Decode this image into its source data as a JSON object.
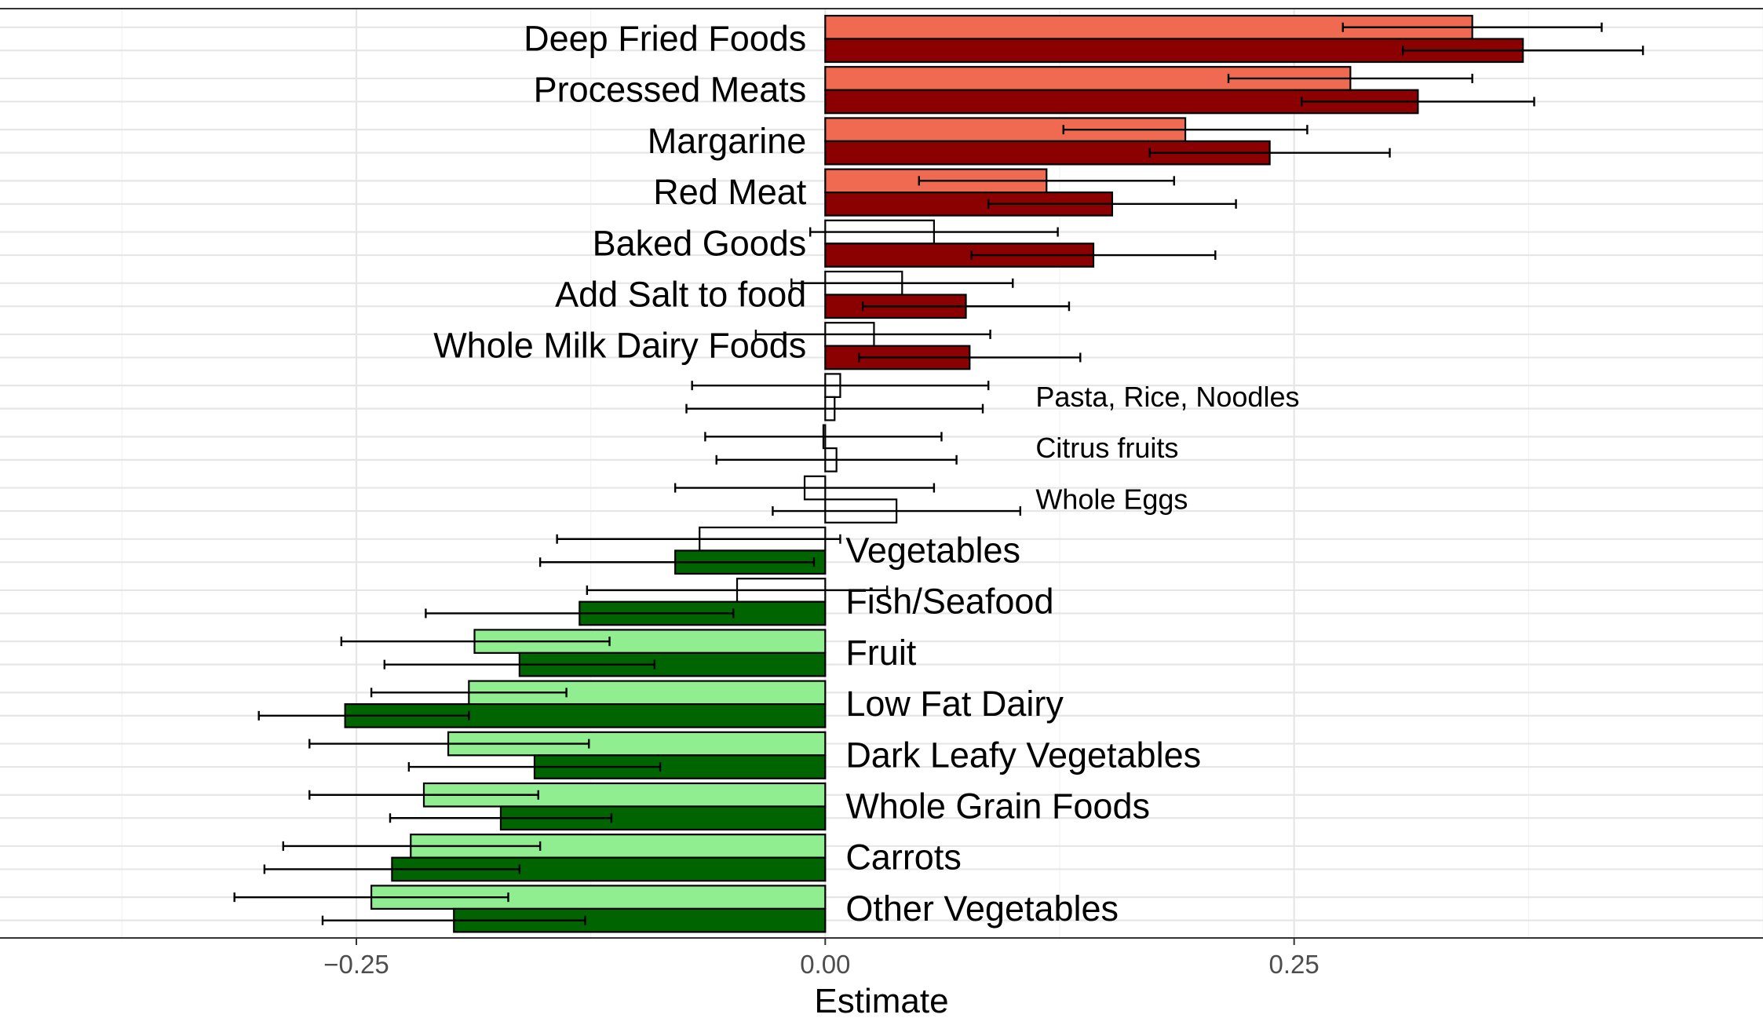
{
  "chart_data": {
    "type": "bar",
    "orientation": "horizontal",
    "xlabel": "Estimate",
    "ylabel": "",
    "xlim": [
      -0.44,
      0.5
    ],
    "xticks": [
      -0.25,
      0.0,
      0.25
    ],
    "xtick_labels": [
      "−0.25",
      "0.00",
      "0.25"
    ],
    "grid": true,
    "colors": {
      "positive_light": "#ef6a50",
      "positive_dark": "#8b0000",
      "negative_light": "#90ee90",
      "negative_dark": "#006400",
      "nonsignificant": "#ffffff"
    },
    "categories": [
      "Deep Fried Foods",
      "Processed Meats",
      "Margarine",
      "Red Meat",
      "Baked Goods",
      "Add Salt to food",
      "Whole Milk Dairy Foods",
      "Pasta, Rice, Noodles",
      "Citrus fruits",
      "Whole Eggs",
      "Vegetables",
      "Fish/Seafood",
      "Fruit",
      "Low Fat Dairy",
      "Dark Leafy Vegetables",
      "Whole Grain Foods",
      "Carrots",
      "Other Vegetables"
    ],
    "label_size": [
      "big",
      "big",
      "big",
      "big",
      "big",
      "big",
      "big",
      "small",
      "small",
      "small",
      "big",
      "big",
      "big",
      "big",
      "big",
      "big",
      "big",
      "big"
    ],
    "series": [
      {
        "values": [
          0.345,
          0.28,
          0.192,
          0.118,
          0.058,
          0.041,
          0.026,
          0.008,
          -0.001,
          -0.011,
          -0.067,
          -0.047,
          -0.187,
          -0.19,
          -0.201,
          -0.214,
          -0.221,
          -0.242
        ],
        "ci_low": [
          0.276,
          0.215,
          0.127,
          0.05,
          -0.008,
          -0.018,
          -0.037,
          -0.071,
          -0.064,
          -0.08,
          -0.143,
          -0.127,
          -0.258,
          -0.242,
          -0.275,
          -0.275,
          -0.289,
          -0.315
        ],
        "ci_high": [
          0.414,
          0.345,
          0.257,
          0.186,
          0.124,
          0.1,
          0.088,
          0.087,
          0.062,
          0.058,
          0.008,
          0.033,
          -0.115,
          -0.138,
          -0.126,
          -0.153,
          -0.152,
          -0.169
        ],
        "fill": [
          "positive_light",
          "positive_light",
          "positive_light",
          "positive_light",
          "nonsignificant",
          "nonsignificant",
          "nonsignificant",
          "nonsignificant",
          "nonsignificant",
          "nonsignificant",
          "nonsignificant",
          "nonsignificant",
          "negative_light",
          "negative_light",
          "negative_light",
          "negative_light",
          "negative_light",
          "negative_light"
        ]
      },
      {
        "values": [
          0.372,
          0.316,
          0.237,
          0.153,
          0.143,
          0.075,
          0.077,
          0.005,
          0.006,
          0.038,
          -0.08,
          -0.131,
          -0.163,
          -0.256,
          -0.155,
          -0.173,
          -0.231,
          -0.198
        ],
        "ci_low": [
          0.308,
          0.254,
          0.173,
          0.087,
          0.078,
          0.02,
          0.018,
          -0.074,
          -0.058,
          -0.028,
          -0.152,
          -0.213,
          -0.235,
          -0.302,
          -0.222,
          -0.232,
          -0.299,
          -0.268
        ],
        "ci_high": [
          0.436,
          0.378,
          0.301,
          0.219,
          0.208,
          0.13,
          0.136,
          0.084,
          0.07,
          0.104,
          -0.006,
          -0.049,
          -0.091,
          -0.19,
          -0.088,
          -0.114,
          -0.163,
          -0.128
        ],
        "fill": [
          "positive_dark",
          "positive_dark",
          "positive_dark",
          "positive_dark",
          "positive_dark",
          "positive_dark",
          "positive_dark",
          "nonsignificant",
          "nonsignificant",
          "nonsignificant",
          "negative_dark",
          "negative_dark",
          "negative_dark",
          "negative_dark",
          "negative_dark",
          "negative_dark",
          "negative_dark",
          "negative_dark"
        ]
      }
    ]
  }
}
